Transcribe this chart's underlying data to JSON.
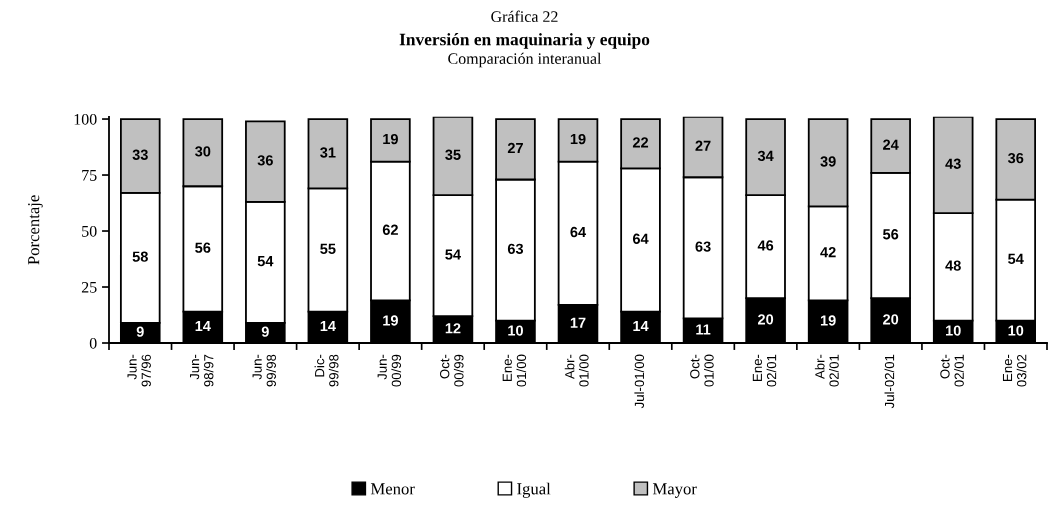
{
  "chart_data": {
    "type": "bar",
    "stacked": true,
    "annotations": [
      "Gráfica 22"
    ],
    "title": "Inversión en maquinaria y equipo",
    "subtitle": "Comparación interanual",
    "ylabel": "Porcentaje",
    "categories": [
      "Jun-\n97/96",
      "Jun-\n98/97",
      "Jun-\n99/98",
      "Dic-\n99/98",
      "Jun-\n00/99",
      "Oct-\n00/99",
      "Ene-\n01/00",
      "Abr-\n01/00",
      "Jul-01/00",
      "Oct-\n01/00",
      "Ene-\n02/01",
      "Abr-\n02/01",
      "Jul-02/01",
      "Oct-\n02/01",
      "Ene-\n03/02"
    ],
    "series": [
      {
        "name": "Menor",
        "color": "#000000",
        "values": [
          9,
          14,
          9,
          14,
          19,
          12,
          10,
          17,
          14,
          11,
          20,
          19,
          20,
          10,
          10
        ]
      },
      {
        "name": "Igual",
        "color": "#ffffff",
        "values": [
          58,
          56,
          54,
          55,
          62,
          54,
          63,
          64,
          64,
          63,
          46,
          42,
          56,
          48,
          54
        ]
      },
      {
        "name": "Mayor",
        "color": "#c0c0c0",
        "values": [
          33,
          30,
          36,
          31,
          19,
          35,
          27,
          19,
          22,
          27,
          34,
          39,
          24,
          43,
          36
        ]
      }
    ],
    "ylim": [
      0,
      101
    ],
    "yticks": [
      0,
      25,
      50,
      75,
      100
    ],
    "grid": false,
    "legend": "bottom",
    "data_labels": true
  }
}
